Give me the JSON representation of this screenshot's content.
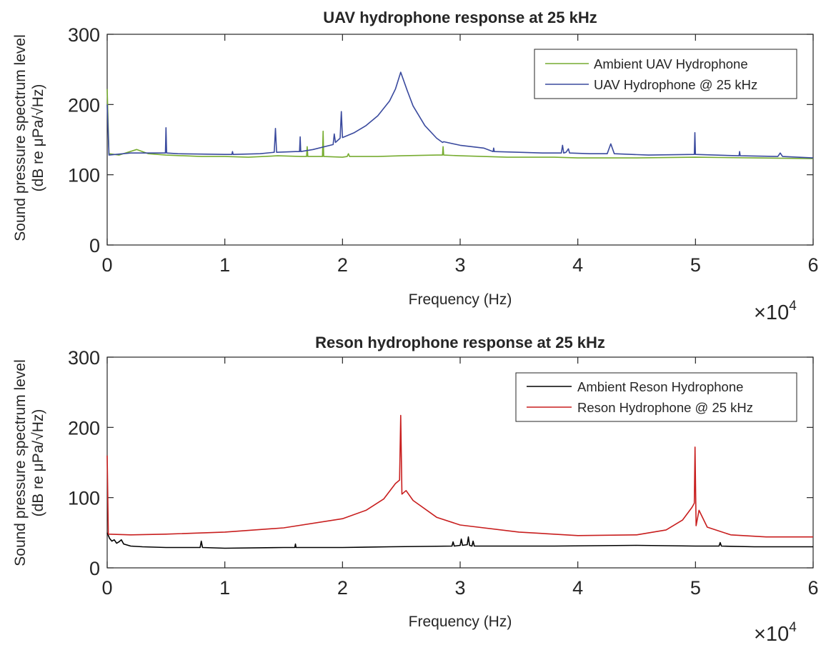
{
  "chart_data": [
    {
      "type": "line",
      "title": "UAV hydrophone response at 25 kHz",
      "xlabel": "Frequency (Hz)",
      "ylabel_line1": "Sound pressure spectrum level",
      "ylabel_line2": "(dB re μPa/√Hz)",
      "xlim": [
        0,
        60000
      ],
      "ylim": [
        0,
        300
      ],
      "x_ticks": [
        0,
        1,
        2,
        3,
        4,
        5,
        6
      ],
      "y_ticks": [
        0,
        100,
        200,
        300
      ],
      "x_multiplier_base": "×10",
      "x_multiplier_exp": "4",
      "legend_position": "top-right",
      "grid": false,
      "series": [
        {
          "name": "Ambient UAV Hydrophone",
          "color": "#77ac30",
          "points": [
            [
              0,
              222
            ],
            [
              150,
              130
            ],
            [
              1000,
              128
            ],
            [
              2500,
              136
            ],
            [
              3500,
              130
            ],
            [
              5000,
              128
            ],
            [
              8000,
              126
            ],
            [
              10000,
              126
            ],
            [
              12000,
              125
            ],
            [
              14500,
              127
            ],
            [
              16500,
              126
            ],
            [
              16950,
              126
            ],
            [
              17000,
              140
            ],
            [
              17050,
              126
            ],
            [
              18000,
              126
            ],
            [
              18300,
              126
            ],
            [
              18350,
              162
            ],
            [
              18400,
              126
            ],
            [
              20000,
              125
            ],
            [
              20400,
              126
            ],
            [
              20500,
              130
            ],
            [
              20600,
              126
            ],
            [
              23000,
              126
            ],
            [
              25000,
              127
            ],
            [
              28000,
              128
            ],
            [
              28500,
              128
            ],
            [
              28550,
              140
            ],
            [
              28600,
              128
            ],
            [
              30000,
              127
            ],
            [
              32000,
              126
            ],
            [
              34000,
              125
            ],
            [
              38000,
              125
            ],
            [
              40000,
              124
            ],
            [
              45000,
              124
            ],
            [
              50000,
              125
            ],
            [
              55000,
              124
            ],
            [
              60000,
              123
            ]
          ]
        },
        {
          "name": "UAV Hydrophone @ 25 kHz",
          "color": "#3a4a9e",
          "points": [
            [
              0,
              200
            ],
            [
              150,
              128
            ],
            [
              2000,
              131
            ],
            [
              4500,
              131
            ],
            [
              4950,
              131
            ],
            [
              5000,
              167
            ],
            [
              5050,
              131
            ],
            [
              6000,
              130
            ],
            [
              10000,
              129
            ],
            [
              10600,
              129
            ],
            [
              10650,
              133
            ],
            [
              10700,
              129
            ],
            [
              13000,
              130
            ],
            [
              14200,
              132
            ],
            [
              14300,
              166
            ],
            [
              14400,
              132
            ],
            [
              16000,
              133
            ],
            [
              16350,
              133
            ],
            [
              16400,
              154
            ],
            [
              16450,
              133
            ],
            [
              17500,
              136
            ],
            [
              19200,
              143
            ],
            [
              19300,
              158
            ],
            [
              19400,
              146
            ],
            [
              19800,
              152
            ],
            [
              19900,
              190
            ],
            [
              20000,
              153
            ],
            [
              21000,
              160
            ],
            [
              22000,
              170
            ],
            [
              23000,
              184
            ],
            [
              24000,
              205
            ],
            [
              24500,
              222
            ],
            [
              24950,
              246
            ],
            [
              25500,
              220
            ],
            [
              26000,
              198
            ],
            [
              27000,
              170
            ],
            [
              28000,
              152
            ],
            [
              28500,
              146
            ],
            [
              28600,
              147
            ],
            [
              30000,
              142
            ],
            [
              32000,
              138
            ],
            [
              32800,
              133
            ],
            [
              32850,
              138
            ],
            [
              32900,
              133
            ],
            [
              35000,
              132
            ],
            [
              37000,
              131
            ],
            [
              38600,
              131
            ],
            [
              38700,
              142
            ],
            [
              38800,
              131
            ],
            [
              39000,
              132
            ],
            [
              39200,
              137
            ],
            [
              39300,
              131
            ],
            [
              41000,
              130
            ],
            [
              42500,
              130
            ],
            [
              42800,
              144
            ],
            [
              43100,
              130
            ],
            [
              46000,
              128
            ],
            [
              49900,
              129
            ],
            [
              49950,
              160
            ],
            [
              50000,
              129
            ],
            [
              53700,
              127
            ],
            [
              53750,
              133
            ],
            [
              53800,
              127
            ],
            [
              57000,
              126
            ],
            [
              57200,
              131
            ],
            [
              57400,
              126
            ],
            [
              60000,
              124
            ]
          ]
        }
      ]
    },
    {
      "type": "line",
      "title": "Reson hydrophone response at 25 kHz",
      "xlabel": "Frequency (Hz)",
      "ylabel_line1": "Sound pressure spectrum level",
      "ylabel_line2": "(dB re μPa/√Hz)",
      "xlim": [
        0,
        60000
      ],
      "ylim": [
        0,
        300
      ],
      "x_ticks": [
        0,
        1,
        2,
        3,
        4,
        5,
        6
      ],
      "y_ticks": [
        0,
        100,
        200,
        300
      ],
      "x_multiplier_base": "×10",
      "x_multiplier_exp": "4",
      "legend_position": "top-right",
      "grid": false,
      "series": [
        {
          "name": "Ambient Reson Hydrophone",
          "color": "#000000",
          "points": [
            [
              0,
              50
            ],
            [
              200,
              42
            ],
            [
              400,
              38
            ],
            [
              600,
              40
            ],
            [
              800,
              35
            ],
            [
              1000,
              37
            ],
            [
              1200,
              40
            ],
            [
              1400,
              34
            ],
            [
              2000,
              31
            ],
            [
              3000,
              30
            ],
            [
              5000,
              29
            ],
            [
              7900,
              29
            ],
            [
              8000,
              38
            ],
            [
              8100,
              29
            ],
            [
              10000,
              28
            ],
            [
              15000,
              29
            ],
            [
              15950,
              29
            ],
            [
              16000,
              34
            ],
            [
              16050,
              29
            ],
            [
              20000,
              29
            ],
            [
              24000,
              30
            ],
            [
              29300,
              31
            ],
            [
              29400,
              37
            ],
            [
              29500,
              31
            ],
            [
              30000,
              32
            ],
            [
              30100,
              41
            ],
            [
              30200,
              32
            ],
            [
              30600,
              33
            ],
            [
              30700,
              44
            ],
            [
              30800,
              32
            ],
            [
              31000,
              31
            ],
            [
              31100,
              38
            ],
            [
              31200,
              31
            ],
            [
              33000,
              31
            ],
            [
              38000,
              31
            ],
            [
              45000,
              32
            ],
            [
              50000,
              31
            ],
            [
              52000,
              31
            ],
            [
              52100,
              36
            ],
            [
              52200,
              31
            ],
            [
              55000,
              30
            ],
            [
              60000,
              30
            ]
          ]
        },
        {
          "name": "Reson Hydrophone  @ 25 kHz",
          "color": "#c81e1e",
          "points": [
            [
              0,
              160
            ],
            [
              100,
              48
            ],
            [
              2000,
              47
            ],
            [
              5000,
              48
            ],
            [
              10000,
              51
            ],
            [
              15000,
              57
            ],
            [
              20000,
              70
            ],
            [
              22000,
              82
            ],
            [
              23500,
              98
            ],
            [
              24500,
              120
            ],
            [
              24850,
              125
            ],
            [
              24950,
              217
            ],
            [
              25050,
              105
            ],
            [
              25400,
              110
            ],
            [
              26000,
              96
            ],
            [
              28000,
              72
            ],
            [
              30000,
              61
            ],
            [
              35000,
              51
            ],
            [
              40000,
              46
            ],
            [
              45000,
              47
            ],
            [
              47500,
              54
            ],
            [
              48900,
              68
            ],
            [
              49700,
              86
            ],
            [
              49900,
              92
            ],
            [
              49960,
              172
            ],
            [
              50050,
              60
            ],
            [
              50300,
              82
            ],
            [
              51000,
              58
            ],
            [
              53000,
              47
            ],
            [
              56000,
              44
            ],
            [
              60000,
              44
            ]
          ]
        }
      ]
    }
  ]
}
